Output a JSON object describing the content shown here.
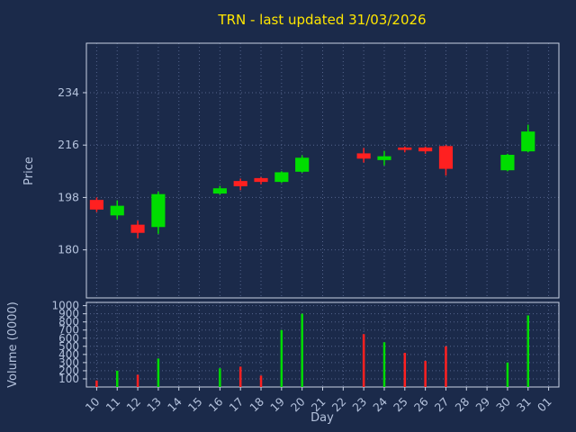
{
  "window": {
    "title": "TRN - last updated 31/03/2026"
  },
  "chart_data": {
    "type": "candlestick",
    "title": "TRN - last updated 31/03/2026",
    "xlabel": "Day",
    "x_categories": [
      "10",
      "11",
      "12",
      "13",
      "14",
      "15",
      "16",
      "17",
      "18",
      "19",
      "20",
      "21",
      "22",
      "23",
      "24",
      "25",
      "26",
      "27",
      "28",
      "29",
      "30",
      "31",
      "01"
    ],
    "panels": [
      {
        "name": "price",
        "ylabel": "Price",
        "yticks": [
          180,
          198,
          216,
          234
        ],
        "ylim": [
          163.5,
          251
        ]
      },
      {
        "name": "volume",
        "ylabel": "Volume (0000)",
        "yticks": [
          100,
          200,
          300,
          400,
          500,
          600,
          700,
          800,
          900,
          1000
        ],
        "ylim": [
          0,
          1040
        ]
      }
    ],
    "candles": [
      {
        "day": "10",
        "open": 197.0,
        "high": 198.0,
        "low": 193.0,
        "close": 194.0,
        "volume": 80
      },
      {
        "day": "11",
        "open": 192.0,
        "high": 197.0,
        "low": 190.5,
        "close": 195.0,
        "volume": 200
      },
      {
        "day": "12",
        "open": 188.5,
        "high": 190.0,
        "low": 184.0,
        "close": 186.0,
        "volume": 150
      },
      {
        "day": "13",
        "open": 188.0,
        "high": 200.0,
        "low": 185.5,
        "close": 199.0,
        "volume": 350
      },
      {
        "day": "16",
        "open": 199.5,
        "high": 202.0,
        "low": 199.0,
        "close": 201.0,
        "volume": 230
      },
      {
        "day": "17",
        "open": 203.5,
        "high": 204.5,
        "low": 200.5,
        "close": 202.0,
        "volume": 250
      },
      {
        "day": "18",
        "open": 204.5,
        "high": 205.0,
        "low": 202.5,
        "close": 203.5,
        "volume": 140
      },
      {
        "day": "19",
        "open": 203.5,
        "high": 207.0,
        "low": 203.0,
        "close": 206.5,
        "volume": 700
      },
      {
        "day": "20",
        "open": 207.0,
        "high": 212.5,
        "low": 206.5,
        "close": 211.5,
        "volume": 900
      },
      {
        "day": "23",
        "open": 213.0,
        "high": 215.0,
        "low": 210.0,
        "close": 211.5,
        "volume": 650
      },
      {
        "day": "24",
        "open": 211.0,
        "high": 214.0,
        "low": 209.0,
        "close": 212.0,
        "volume": 550
      },
      {
        "day": "25",
        "open": 215.0,
        "high": 215.5,
        "low": 213.5,
        "close": 214.5,
        "volume": 420
      },
      {
        "day": "26",
        "open": 215.0,
        "high": 215.5,
        "low": 213.0,
        "close": 214.0,
        "volume": 320
      },
      {
        "day": "27",
        "open": 215.5,
        "high": 216.0,
        "low": 205.5,
        "close": 208.0,
        "volume": 500
      },
      {
        "day": "30",
        "open": 207.5,
        "high": 213.0,
        "low": 207.0,
        "close": 212.5,
        "volume": 300
      },
      {
        "day": "31",
        "open": 214.0,
        "high": 223.0,
        "low": 213.5,
        "close": 220.5,
        "volume": 880
      }
    ],
    "colors": {
      "background": "#1b2a4a",
      "up": "#00dd00",
      "down": "#ff2020",
      "grid": "#54648c",
      "axis": "#c9d2e4",
      "text": "#b4c2dc",
      "title": "#ffe600"
    }
  }
}
